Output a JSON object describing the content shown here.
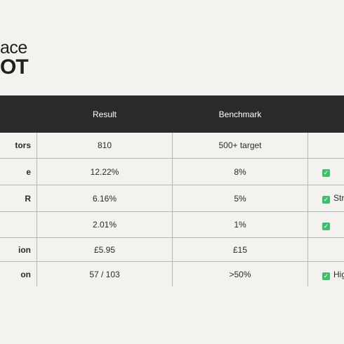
{
  "logo": {
    "line1": "ace",
    "line2": "OT"
  },
  "table": {
    "headers": [
      "",
      "Result",
      "Benchmark",
      ""
    ],
    "rows": [
      {
        "metric": "tors",
        "result": "810",
        "benchmark": "500+ target",
        "status": "",
        "check": false
      },
      {
        "metric": "e",
        "result": "12.22%",
        "benchmark": "8%",
        "status": "",
        "check": true
      },
      {
        "metric": "R",
        "result": "6.16%",
        "benchmark": "5%",
        "status": "Stro",
        "check": true
      },
      {
        "metric": "",
        "result": "2.01%",
        "benchmark": "1%",
        "status": "",
        "check": true
      },
      {
        "metric": "ion",
        "result": "£5.95",
        "benchmark": "£15",
        "status": "",
        "check": false
      },
      {
        "metric": "on",
        "result": "57 / 103",
        "benchmark": ">50%",
        "status": "High",
        "check": true
      }
    ]
  },
  "icons": {
    "check": "check-icon",
    "check_color": "#3fbf6e"
  },
  "colors": {
    "background": "#f4f2ee",
    "header_background": "#2a2a2a",
    "header_text": "#ffffff",
    "border": "#b9b7b2"
  }
}
